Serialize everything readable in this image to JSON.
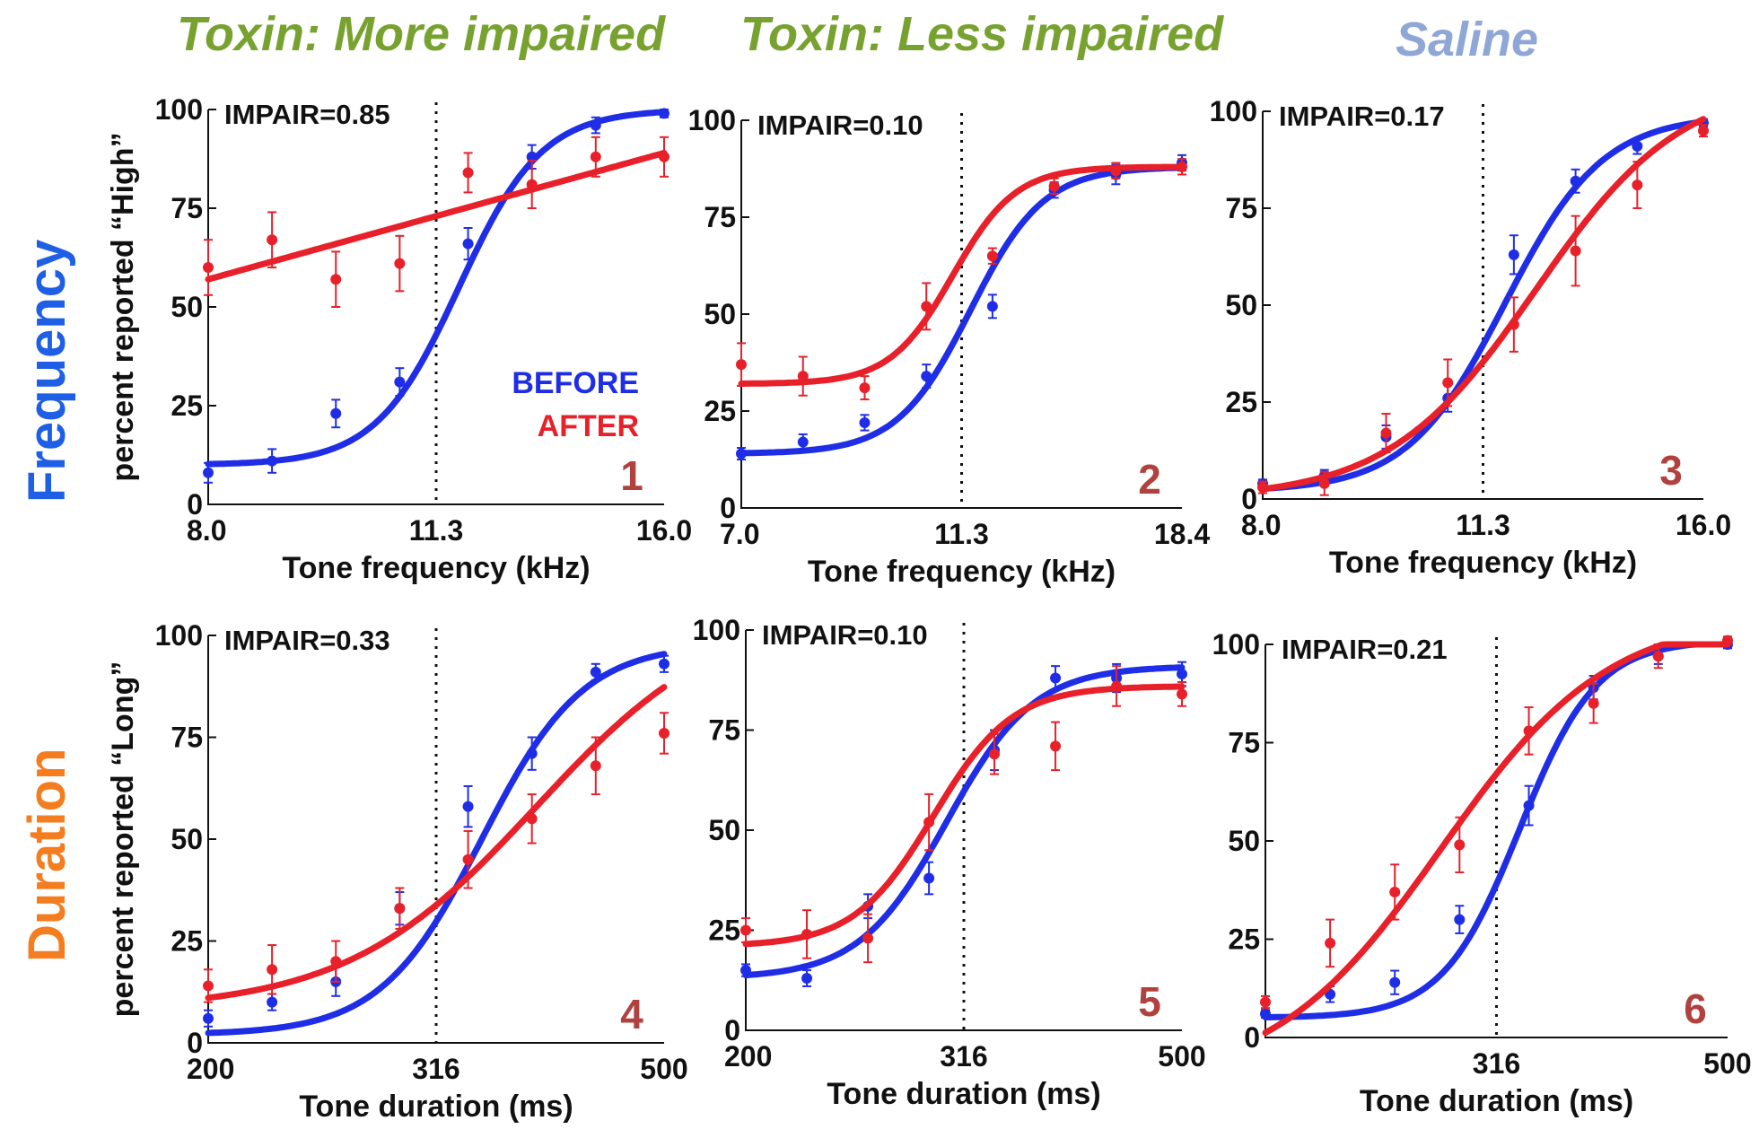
{
  "headers": {
    "toxin_more": "Toxin: More impaired",
    "toxin_less": "Toxin: Less impaired",
    "saline": "Saline"
  },
  "row_labels": {
    "frequency": "Frequency",
    "duration": "Duration"
  },
  "legend": {
    "before": "BEFORE",
    "after": "AFTER"
  },
  "colors": {
    "before": "#1f2ee6",
    "after": "#e8202a",
    "header_toxin": "#78a22f",
    "header_saline": "#8fa7d6",
    "row_frequency": "#1e5fe6",
    "row_duration": "#f47d20",
    "panel_number": "#b0413e"
  },
  "chart_data": [
    {
      "type": "line",
      "panel": "1",
      "impair_label": "IMPAIR=0.85",
      "xlabel": "Tone frequency (kHz)",
      "ylabel": "percent reported “High”",
      "xtick_labels": [
        "8.0",
        "11.3",
        "16.0"
      ],
      "xtick_pos": [
        0,
        0.5,
        1
      ],
      "yticks": [
        0,
        25,
        50,
        75,
        100
      ],
      "ylim": [
        0,
        100
      ],
      "boundary": 0.5,
      "series": [
        {
          "name": "BEFORE",
          "curve": {
            "lo": 10,
            "hi": 100,
            "mid": 0.55,
            "slope": 11
          },
          "points": [
            [
              0,
              8,
              2.5
            ],
            [
              0.14,
              11,
              3
            ],
            [
              0.28,
              23,
              3.5
            ],
            [
              0.42,
              31,
              3.5
            ],
            [
              0.57,
              66,
              4
            ],
            [
              0.71,
              88,
              3
            ],
            [
              0.85,
              96,
              2
            ],
            [
              1.0,
              99,
              1
            ]
          ]
        },
        {
          "name": "AFTER",
          "line": [
            57,
            89
          ],
          "points": [
            [
              0,
              60,
              7
            ],
            [
              0.14,
              67,
              7
            ],
            [
              0.28,
              57,
              7
            ],
            [
              0.42,
              61,
              7
            ],
            [
              0.57,
              84,
              5
            ],
            [
              0.71,
              81,
              6
            ],
            [
              0.85,
              88,
              5
            ],
            [
              1.0,
              88,
              5
            ]
          ]
        }
      ]
    },
    {
      "type": "line",
      "panel": "2",
      "impair_label": "IMPAIR=0.10",
      "xlabel": "Tone frequency (kHz)",
      "ylabel": "",
      "xtick_labels": [
        "7.0",
        "11.3",
        "18.4"
      ],
      "xtick_pos": [
        0,
        0.5,
        1
      ],
      "yticks": [
        0,
        25,
        50,
        75,
        100
      ],
      "ylim": [
        0,
        100
      ],
      "boundary": 0.5,
      "series": [
        {
          "name": "BEFORE",
          "curve": {
            "lo": 14,
            "hi": 88,
            "mid": 0.52,
            "slope": 12
          },
          "points": [
            [
              0,
              14,
              1.5
            ],
            [
              0.14,
              17,
              2
            ],
            [
              0.28,
              22,
              2
            ],
            [
              0.42,
              34,
              3
            ],
            [
              0.57,
              52,
              3
            ],
            [
              0.71,
              82,
              2
            ],
            [
              0.85,
              86,
              2.5
            ],
            [
              1.0,
              89,
              2
            ]
          ]
        },
        {
          "name": "AFTER",
          "curve": {
            "lo": 32,
            "hi": 88,
            "mid": 0.48,
            "slope": 14
          },
          "points": [
            [
              0,
              37,
              5.5
            ],
            [
              0.14,
              34,
              5
            ],
            [
              0.28,
              31,
              3
            ],
            [
              0.42,
              52,
              6
            ],
            [
              0.57,
              65,
              2
            ],
            [
              0.71,
              83,
              2
            ],
            [
              0.85,
              87,
              2
            ],
            [
              1.0,
              88,
              2
            ]
          ]
        }
      ]
    },
    {
      "type": "line",
      "panel": "3",
      "impair_label": "IMPAIR=0.17",
      "xlabel": "Tone frequency (kHz)",
      "ylabel": "",
      "xtick_labels": [
        "8.0",
        "11.3",
        "16.0"
      ],
      "xtick_pos": [
        0,
        0.5,
        1
      ],
      "yticks": [
        0,
        25,
        50,
        75,
        100
      ],
      "ylim": [
        0,
        100
      ],
      "boundary": 0.5,
      "series": [
        {
          "name": "BEFORE",
          "curve": {
            "lo": 2,
            "hi": 99,
            "mid": 0.55,
            "slope": 9
          },
          "points": [
            [
              0,
              4,
              1
            ],
            [
              0.14,
              6,
              1.5
            ],
            [
              0.28,
              16,
              3
            ],
            [
              0.42,
              26,
              3.5
            ],
            [
              0.57,
              63,
              5
            ],
            [
              0.71,
              82,
              3
            ],
            [
              0.85,
              91,
              2
            ],
            [
              1.0,
              97,
              1
            ]
          ]
        },
        {
          "name": "AFTER",
          "curve": {
            "lo": 0,
            "hi": 108,
            "mid": 0.62,
            "slope": 6
          },
          "points": [
            [
              0,
              3,
              1.5
            ],
            [
              0.14,
              4,
              3
            ],
            [
              0.28,
              17,
              5
            ],
            [
              0.42,
              30,
              6
            ],
            [
              0.57,
              45,
              7
            ],
            [
              0.71,
              64,
              9
            ],
            [
              0.85,
              81,
              6
            ],
            [
              1.0,
              95,
              1.5
            ]
          ]
        }
      ]
    },
    {
      "type": "line",
      "panel": "4",
      "impair_label": "IMPAIR=0.33",
      "xlabel": "Tone duration (ms)",
      "ylabel": "percent reported “Long”",
      "xtick_labels": [
        "200",
        "316",
        "500"
      ],
      "xtick_pos": [
        0,
        0.5,
        1
      ],
      "yticks": [
        0,
        25,
        50,
        75,
        100
      ],
      "ylim": [
        0,
        100
      ],
      "boundary": 0.5,
      "series": [
        {
          "name": "BEFORE",
          "curve": {
            "lo": 2,
            "hi": 98,
            "mid": 0.6,
            "slope": 9
          },
          "points": [
            [
              0,
              6,
              2
            ],
            [
              0.14,
              10,
              2
            ],
            [
              0.28,
              15,
              3.5
            ],
            [
              0.42,
              33,
              4
            ],
            [
              0.57,
              58,
              5
            ],
            [
              0.71,
              71,
              4
            ],
            [
              0.85,
              91,
              2
            ],
            [
              1.0,
              93,
              2
            ]
          ]
        },
        {
          "name": "AFTER",
          "curve": {
            "lo": 8,
            "hi": 108,
            "mid": 0.72,
            "slope": 4.8
          },
          "points": [
            [
              0,
              14,
              4
            ],
            [
              0.14,
              18,
              6
            ],
            [
              0.28,
              20,
              5
            ],
            [
              0.42,
              33,
              5
            ],
            [
              0.57,
              45,
              7
            ],
            [
              0.71,
              55,
              6
            ],
            [
              0.85,
              68,
              7
            ],
            [
              1.0,
              76,
              5
            ]
          ]
        }
      ]
    },
    {
      "type": "line",
      "panel": "5",
      "impair_label": "IMPAIR=0.10",
      "xlabel": "Tone duration (ms)",
      "ylabel": "",
      "xtick_labels": [
        "200",
        "316",
        "500"
      ],
      "xtick_pos": [
        0,
        0.5,
        1
      ],
      "yticks": [
        0,
        25,
        50,
        75,
        100
      ],
      "ylim": [
        0,
        100
      ],
      "boundary": 0.5,
      "series": [
        {
          "name": "BEFORE",
          "curve": {
            "lo": 13,
            "hi": 91,
            "mid": 0.46,
            "slope": 10
          },
          "points": [
            [
              0,
              15,
              1.5
            ],
            [
              0.14,
              13,
              2
            ],
            [
              0.28,
              31,
              3
            ],
            [
              0.42,
              38,
              4
            ],
            [
              0.57,
              70,
              5
            ],
            [
              0.71,
              88,
              3
            ],
            [
              0.85,
              88,
              3.5
            ],
            [
              1.0,
              89,
              3
            ]
          ]
        },
        {
          "name": "AFTER",
          "curve": {
            "lo": 21,
            "hi": 86,
            "mid": 0.43,
            "slope": 11
          },
          "points": [
            [
              0,
              25,
              3
            ],
            [
              0.14,
              24,
              6
            ],
            [
              0.28,
              23,
              6
            ],
            [
              0.42,
              52,
              7
            ],
            [
              0.57,
              69,
              5
            ],
            [
              0.71,
              71,
              6
            ],
            [
              0.85,
              86,
              5
            ],
            [
              1.0,
              84,
              3
            ]
          ]
        }
      ]
    },
    {
      "type": "line",
      "panel": "6",
      "impair_label": "IMPAIR=0.21",
      "xlabel": "Tone duration (ms)",
      "ylabel": "",
      "xtick_labels": [
        "316",
        "500"
      ],
      "xtick_pos": [
        0.5,
        1
      ],
      "yticks": [
        0,
        25,
        50,
        75,
        100
      ],
      "ylim": [
        0,
        100
      ],
      "boundary": 0.5,
      "series": [
        {
          "name": "BEFORE",
          "curve": {
            "lo": 5,
            "hi": 101,
            "mid": 0.55,
            "slope": 12
          },
          "points": [
            [
              0,
              6,
              1
            ],
            [
              0.14,
              11,
              2
            ],
            [
              0.28,
              14,
              3
            ],
            [
              0.42,
              30,
              3.5
            ],
            [
              0.57,
              59,
              5
            ],
            [
              0.71,
              89,
              3
            ],
            [
              0.85,
              97,
              2
            ],
            [
              1.0,
              100,
              1
            ]
          ]
        },
        {
          "name": "AFTER",
          "curve": {
            "lo": -12,
            "hi": 108,
            "mid": 0.38,
            "slope": 5.5
          },
          "points": [
            [
              0,
              9,
              1.5
            ],
            [
              0.14,
              24,
              6
            ],
            [
              0.28,
              37,
              7
            ],
            [
              0.42,
              49,
              7
            ],
            [
              0.57,
              78,
              6
            ],
            [
              0.71,
              85,
              5
            ],
            [
              0.85,
              97,
              3
            ],
            [
              1.0,
              101,
              1
            ]
          ]
        }
      ]
    }
  ]
}
